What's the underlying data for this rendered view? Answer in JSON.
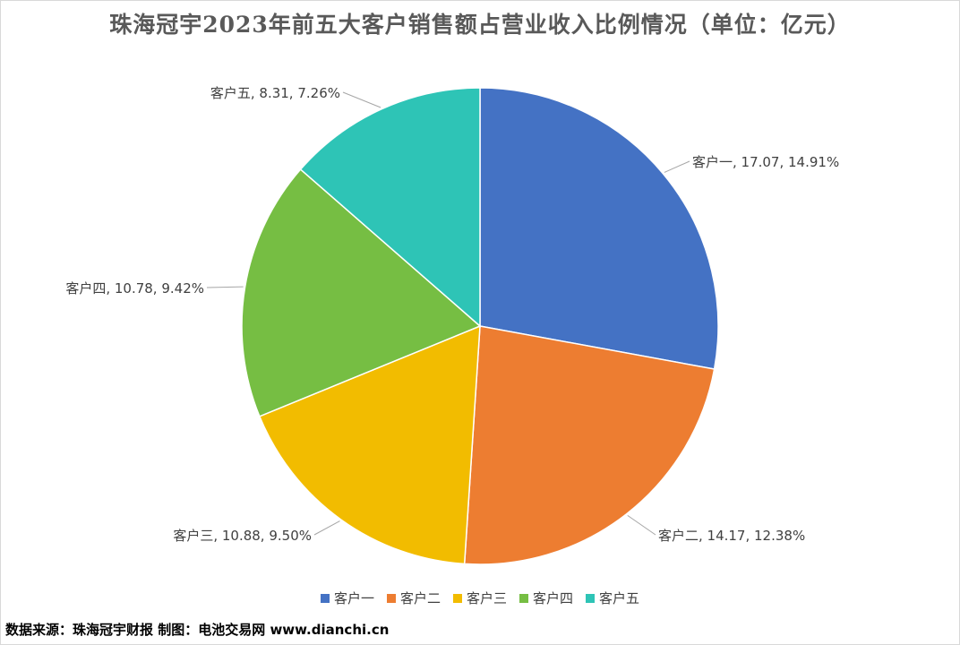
{
  "chart_data": {
    "type": "pie",
    "title": "珠海冠宇2023年前五大客户销售额占营业收入比例情况（单位：亿元）",
    "slices": [
      {
        "name": "客户一",
        "value": 17.07,
        "percent": "14.91%",
        "label": "客户一, 17.07, 14.91%",
        "color": "#4472C4"
      },
      {
        "name": "客户二",
        "value": 14.17,
        "percent": "12.38%",
        "label": "客户二, 14.17, 12.38%",
        "color": "#ED7D31"
      },
      {
        "name": "客户三",
        "value": 10.88,
        "percent": "9.50%",
        "label": "客户三, 10.88, 9.50%",
        "color": "#F2BC00"
      },
      {
        "name": "客户四",
        "value": 10.78,
        "percent": "9.42%",
        "label": "客户四, 10.78, 9.42%",
        "color": "#76BE43"
      },
      {
        "name": "客户五",
        "value": 8.31,
        "percent": "7.26%",
        "label": "客户五, 8.31, 7.26%",
        "color": "#2EC4B6"
      }
    ],
    "legend_position": "bottom"
  },
  "source_text": "数据来源：珠海冠宇财报  制图：电池交易网 www.dianchi.cn"
}
